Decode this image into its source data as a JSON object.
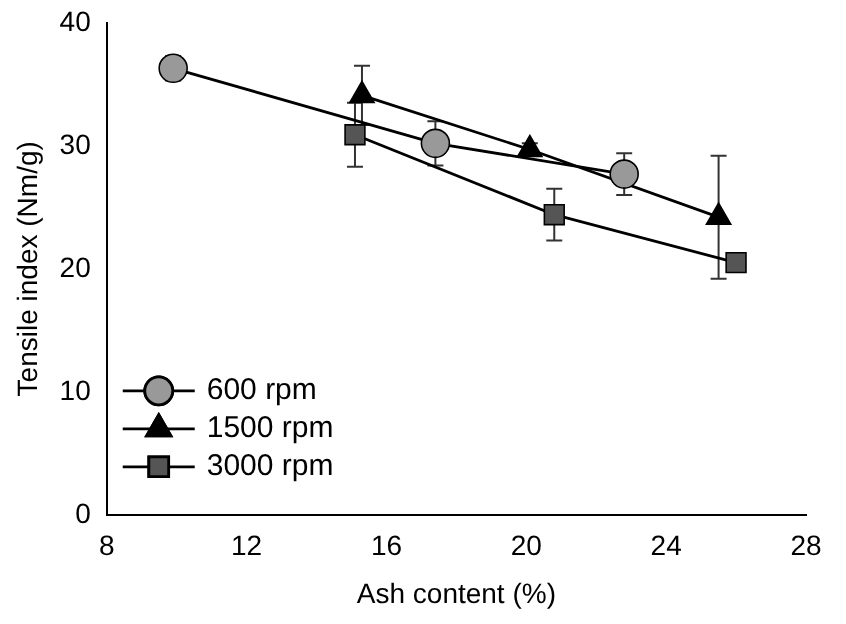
{
  "chart_data": {
    "type": "line",
    "xlabel": "Ash content (%)",
    "ylabel": "Tensile index (Nm/g)",
    "xlim": [
      8,
      28
    ],
    "xticks": [
      8,
      12,
      16,
      20,
      24,
      28
    ],
    "ylim": [
      0,
      40
    ],
    "yticks": [
      0,
      10,
      20,
      30,
      40
    ],
    "grid": false,
    "legend": "bottom left",
    "line_style": "solid",
    "series": [
      {
        "name": "600 rpm",
        "color": "#999999",
        "marker": "circle",
        "x": [
          9.9,
          17.4,
          22.8
        ],
        "values": [
          36.3,
          30.2,
          27.7
        ],
        "errors": [
          1,
          1.8,
          1.7
        ]
      },
      {
        "name": "1500 rpm",
        "color": "#000000",
        "marker": "triangle",
        "x": [
          15.3,
          20.1,
          25.5
        ],
        "values": [
          34.1,
          29.7,
          24.2
        ],
        "errors": [
          2.4,
          0.5,
          5
        ]
      },
      {
        "name": "3000 rpm",
        "color": "#555555",
        "marker": "square",
        "x": [
          15.1,
          20.8,
          26.0
        ],
        "values": [
          30.9,
          24.4,
          20.5
        ],
        "errors": [
          2.6,
          2.1,
          null
        ]
      }
    ]
  }
}
